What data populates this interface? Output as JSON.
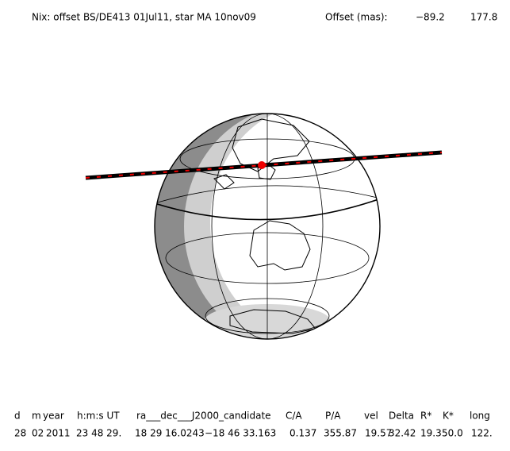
{
  "header": {
    "title": "Nix: offset BS/DE413 01Jul11, star MA 10nov09",
    "offset_label": "Offset (mas):",
    "offset_values": [
      "−89.2",
      "177.8"
    ]
  },
  "table": {
    "headers": [
      "d",
      "m",
      "year",
      "h:m:s UT",
      "ra___dec___J2000_candidate",
      "C/A",
      "P/A",
      "vel",
      "Delta",
      "R*",
      "K*",
      "long"
    ],
    "rows": [
      [
        "28",
        "02",
        "2011",
        "23 48 29.",
        "18 29 16.0243",
        "−18 46  33.163",
        "0.137",
        "355.87",
        "19.57",
        "32.42",
        "19.3",
        "50.0",
        "122."
      ]
    ]
  }
}
